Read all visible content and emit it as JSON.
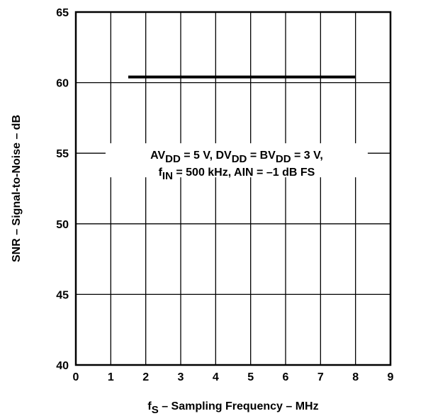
{
  "chart_data": {
    "type": "line",
    "title": "",
    "xlabel": {
      "main": "f",
      "sub": "S",
      "rest": " – Sampling Frequency – MHz"
    },
    "ylabel": "SNR – Signal-to-Noise – dB",
    "xlim": [
      0,
      9
    ],
    "ylim": [
      40,
      65
    ],
    "xticks": [
      0,
      1,
      2,
      3,
      4,
      5,
      6,
      7,
      8,
      9
    ],
    "yticks": [
      40,
      45,
      50,
      55,
      60,
      65
    ],
    "grid": true,
    "series": [
      {
        "x": [
          1.5,
          2,
          3,
          4,
          5,
          6,
          7,
          8
        ],
        "y": [
          60.4,
          60.4,
          60.4,
          60.4,
          60.4,
          60.4,
          60.4,
          60.4
        ]
      }
    ],
    "annotation": {
      "line1": [
        {
          "t": "AV"
        },
        {
          "t": "DD",
          "sub": true
        },
        {
          "t": " = 5 V, DV"
        },
        {
          "t": "DD",
          "sub": true
        },
        {
          "t": " = BV"
        },
        {
          "t": "DD",
          "sub": true
        },
        {
          "t": " = 3 V,"
        }
      ],
      "line2": [
        {
          "t": "f"
        },
        {
          "t": "IN",
          "sub": true
        },
        {
          "t": " = 500 kHz, AIN = –1 dB FS"
        }
      ],
      "anchor_x": 4.6,
      "line1_y": 54.6,
      "line2_y": 53.4
    },
    "line_color": "#000000"
  }
}
